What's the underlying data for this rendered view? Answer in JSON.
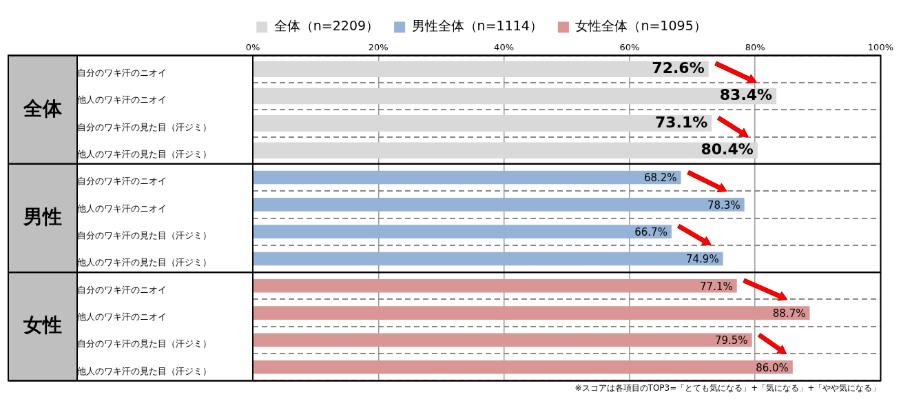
{
  "chart_data": {
    "type": "bar",
    "orientation": "horizontal",
    "categories": [
      "自分のワキ汗のニオイ",
      "他人のワキ汗のニオイ",
      "自分のワキ汗の見た目（汗ジミ）",
      "他人のワキ汗の見た目（汗ジミ）",
      "自分のワキ汗のニオイ",
      "他人のワキ汗のニオイ",
      "自分のワキ汗の見た目（汗ジミ）",
      "他人のワキ汗の見た目（汗ジミ）",
      "自分のワキ汗のニオイ",
      "他人のワキ汗のニオイ",
      "自分のワキ汗の見た目（汗ジミ）",
      "他人のワキ汗の見た目（汗ジミ）"
    ],
    "series": [
      {
        "name": "全体（n=2209）",
        "color": "#d9d9d9",
        "values": [
          72.6,
          83.4,
          73.1,
          80.4,
          null,
          null,
          null,
          null,
          null,
          null,
          null,
          null
        ],
        "value_labels": [
          "72.6%",
          "83.4%",
          "73.1%",
          "80.4%",
          null,
          null,
          null,
          null,
          null,
          null,
          null,
          null
        ]
      },
      {
        "name": "男性全体（n=1114）",
        "color": "#95b3d7",
        "values": [
          null,
          null,
          null,
          null,
          68.2,
          78.3,
          66.7,
          74.9,
          null,
          null,
          null,
          null
        ],
        "value_labels": [
          null,
          null,
          null,
          null,
          "68.2%",
          "78.3%",
          "66.7%",
          "74.9%",
          null,
          null,
          null,
          null
        ]
      },
      {
        "name": "女性全体（n=1095）",
        "color": "#da9694",
        "values": [
          null,
          null,
          null,
          null,
          null,
          null,
          null,
          null,
          77.1,
          88.7,
          79.5,
          86.0
        ],
        "value_labels": [
          null,
          null,
          null,
          null,
          null,
          null,
          null,
          null,
          "77.1%",
          "88.7%",
          "79.5%",
          "86.0%"
        ]
      }
    ],
    "xlim": [
      0,
      100
    ],
    "xticks": [
      {
        "value": 0,
        "label": "0%"
      },
      {
        "value": 20,
        "label": "20%"
      },
      {
        "value": 40,
        "label": "40%"
      },
      {
        "value": 60,
        "label": "60%"
      },
      {
        "value": 80,
        "label": "80%"
      },
      {
        "value": 100,
        "label": "100%"
      }
    ],
    "grid": true,
    "legend": "top",
    "annotations": [
      "全体",
      "男性",
      "女性",
      "※スコアは各項目のTOP3=「とても気になる」+「気になる」+「やや気になる」"
    ]
  }
}
